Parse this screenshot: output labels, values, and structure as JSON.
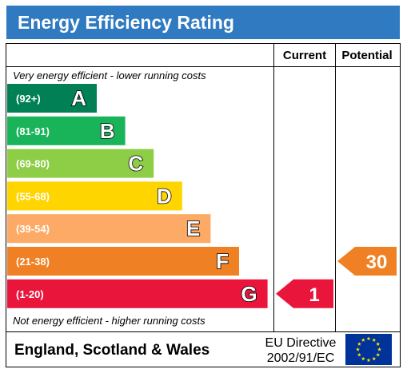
{
  "title": "Energy Efficiency Rating",
  "chart_data": {
    "type": "bar",
    "headers": {
      "current": "Current",
      "potential": "Potential"
    },
    "top_note": "Very energy efficient - lower running costs",
    "bottom_note": "Not energy efficient - higher running costs",
    "bands": [
      {
        "range": "(92+)",
        "letter": "A",
        "color": "#008054"
      },
      {
        "range": "(81-91)",
        "letter": "B",
        "color": "#19b459"
      },
      {
        "range": "(69-80)",
        "letter": "C",
        "color": "#8dce46"
      },
      {
        "range": "(55-68)",
        "letter": "D",
        "color": "#ffd500"
      },
      {
        "range": "(39-54)",
        "letter": "E",
        "color": "#fcaa65"
      },
      {
        "range": "(21-38)",
        "letter": "F",
        "color": "#ef8023"
      },
      {
        "range": "(1-20)",
        "letter": "G",
        "color": "#e9153b"
      }
    ],
    "current": {
      "value": 1,
      "band": "G",
      "color": "#e9153b"
    },
    "potential": {
      "value": 30,
      "band": "F",
      "color": "#ef8023"
    }
  },
  "footer": {
    "region": "England, Scotland & Wales",
    "directive_line1": "EU Directive",
    "directive_line2": "2002/91/EC"
  },
  "icons": {
    "flag": "eu-flag-icon"
  }
}
